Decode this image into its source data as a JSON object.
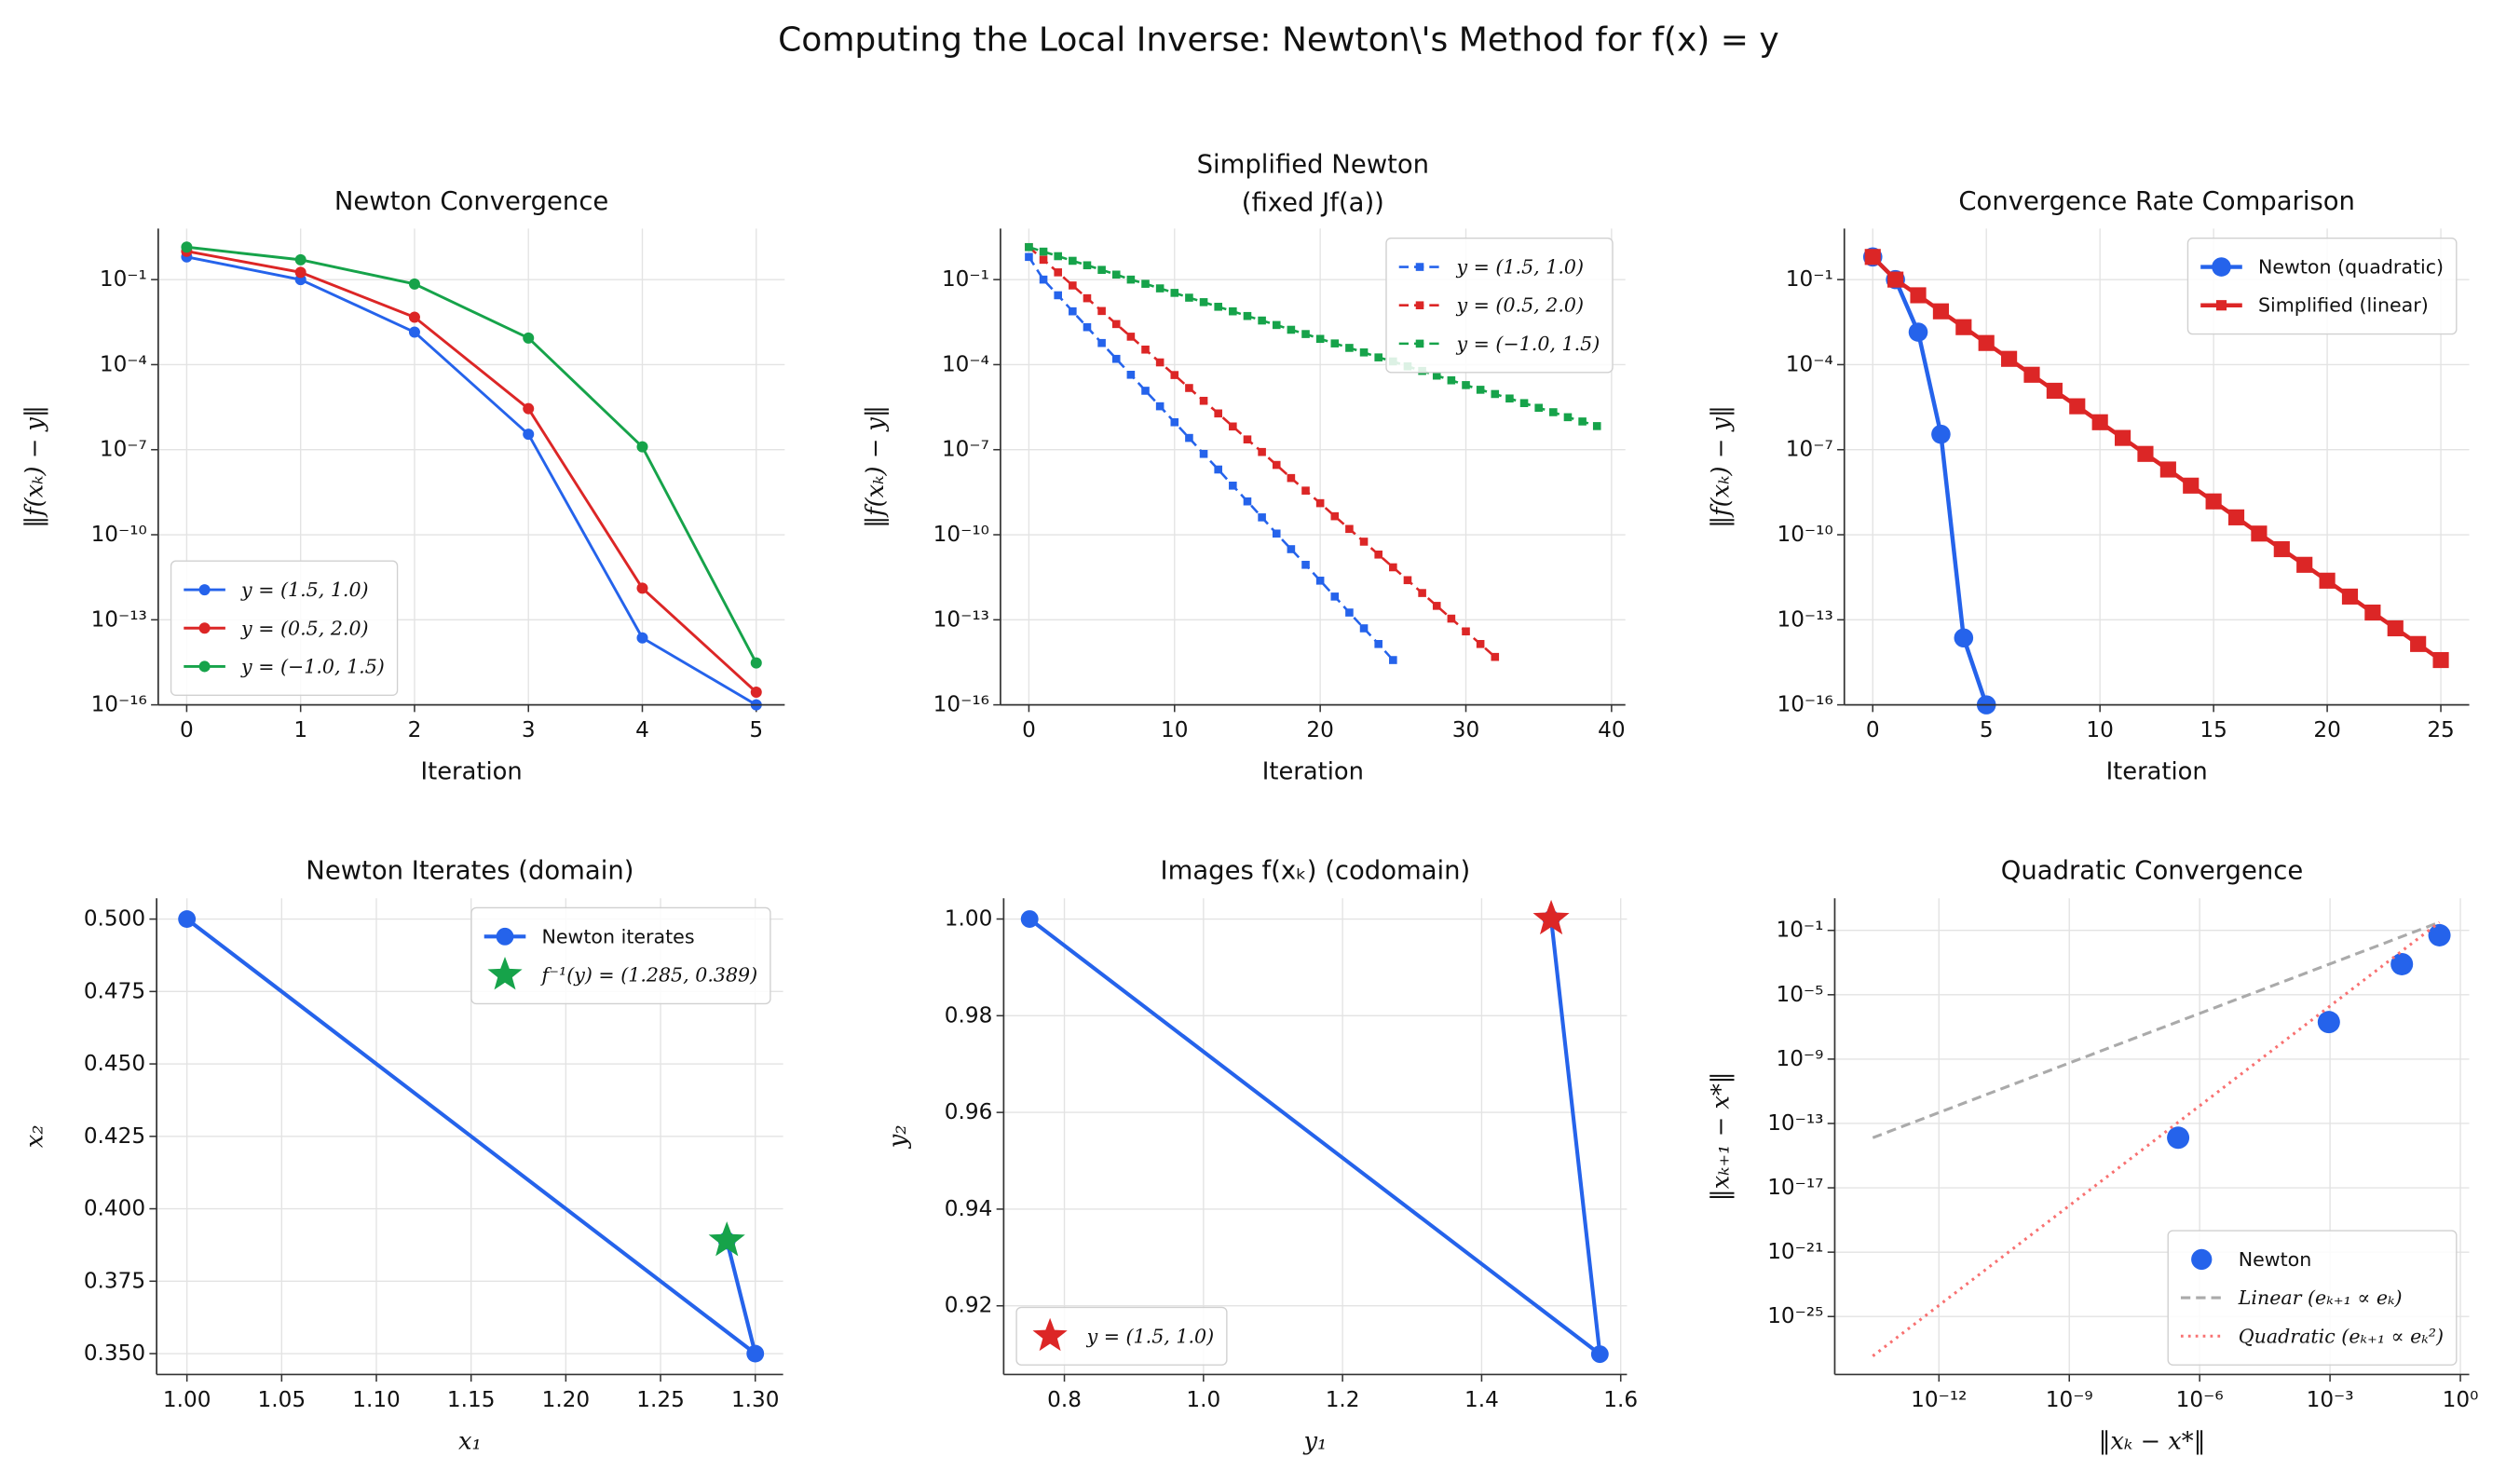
{
  "title": "Computing the Local Inverse: Newton\\'s Method for f(x) = y",
  "chart_data": [
    {
      "type": "line",
      "title": "Newton Convergence",
      "xlabel": "Iteration",
      "ylabel": "‖f(xₖ) − y‖",
      "xlim": [
        -0.25,
        5.25
      ],
      "xticks": [
        0,
        1,
        2,
        3,
        4,
        5
      ],
      "ylim": [
        1e-16,
        6.3
      ],
      "log_y": true,
      "yticks": [
        {
          "value": 1e-16,
          "label": "10⁻¹⁶"
        },
        {
          "value": 1e-13,
          "label": "10⁻¹³"
        },
        {
          "value": 1e-10,
          "label": "10⁻¹⁰"
        },
        {
          "value": 1e-07,
          "label": "10⁻⁷"
        },
        {
          "value": 0.0001,
          "label": "10⁻⁴"
        },
        {
          "value": 0.1,
          "label": "10⁻¹"
        }
      ],
      "grid": true,
      "legend": "lower left",
      "series": [
        {
          "name": "y = (1.5, 1.0)",
          "color": "#2563eb",
          "marker": "circle",
          "markersize": 3.5,
          "linestyle": "solid",
          "linewidth": 1.7,
          "x": [
            0,
            1,
            2,
            3,
            4,
            5
          ],
          "values": [
            0.63,
            0.1,
            0.0014,
            3.5e-07,
            2.3e-14,
            1e-16
          ]
        },
        {
          "name": "y = (0.5, 2.0)",
          "color": "#dc2626",
          "marker": "circle",
          "markersize": 3.5,
          "linestyle": "solid",
          "linewidth": 1.7,
          "x": [
            0,
            1,
            2,
            3,
            4,
            5
          ],
          "values": [
            1.0,
            0.18,
            0.0047,
            2.8e-06,
            1.3e-12,
            2.8e-16
          ]
        },
        {
          "name": "y = (−1.0, 1.5)",
          "color": "#16a34a",
          "marker": "circle",
          "markersize": 3.5,
          "linestyle": "solid",
          "linewidth": 1.7,
          "x": [
            0,
            1,
            2,
            3,
            4,
            5
          ],
          "values": [
            1.4,
            0.5,
            0.07,
            0.00087,
            1.26e-07,
            3e-15
          ]
        }
      ]
    },
    {
      "type": "line",
      "title": "Simplified Newton",
      "subtitle": "(fixed Jf(a))",
      "xlabel": "Iteration",
      "ylabel": "‖f(xₖ) − y‖",
      "xlim": [
        -1.95,
        40.95
      ],
      "xticks": [
        0,
        10,
        20,
        30,
        40
      ],
      "ylim": [
        1e-16,
        6.3
      ],
      "log_y": true,
      "yticks": [
        {
          "value": 1e-16,
          "label": "10⁻¹⁶"
        },
        {
          "value": 1e-13,
          "label": "10⁻¹³"
        },
        {
          "value": 1e-10,
          "label": "10⁻¹⁰"
        },
        {
          "value": 1e-07,
          "label": "10⁻⁷"
        },
        {
          "value": 0.0001,
          "label": "10⁻⁴"
        },
        {
          "value": 0.1,
          "label": "10⁻¹"
        }
      ],
      "grid": true,
      "legend": "upper right",
      "series": [
        {
          "name": "y = (1.5, 1.0)",
          "color": "#2563eb",
          "marker": "square",
          "markersize": 5,
          "linestyle": "dashed",
          "linewidth": 1.5,
          "x": [
            0,
            1,
            2,
            3,
            4,
            5,
            6,
            7,
            8,
            9,
            10,
            11,
            12,
            13,
            14,
            15,
            16,
            17,
            18,
            19,
            20,
            21,
            22,
            23,
            24,
            25
          ],
          "values": [
            0.63,
            0.1,
            0.028,
            0.0076,
            0.0021,
            0.00058,
            0.00016,
            4.4e-05,
            1.2e-05,
            3.4e-06,
            9.3e-07,
            2.6e-07,
            7.1e-08,
            2e-08,
            5.4e-09,
            1.5e-09,
            4.1e-10,
            1.1e-10,
            3.1e-11,
            8.7e-12,
            2.4e-12,
            6.6e-13,
            1.8e-13,
            5e-14,
            1.4e-14,
            3.8e-15
          ]
        },
        {
          "name": "y = (0.5, 2.0)",
          "color": "#dc2626",
          "marker": "square",
          "markersize": 5,
          "linestyle": "dashed",
          "linewidth": 1.5,
          "x": [
            0,
            1,
            2,
            3,
            4,
            5,
            6,
            7,
            8,
            9,
            10,
            11,
            12,
            13,
            14,
            15,
            16,
            17,
            18,
            19,
            20,
            21,
            22,
            23,
            24,
            25,
            26,
            27,
            28,
            29,
            30,
            31,
            32
          ],
          "values": [
            1.4,
            0.5,
            0.18,
            0.062,
            0.022,
            0.0078,
            0.0027,
            0.00097,
            0.00034,
            0.00012,
            4.3e-05,
            1.5e-05,
            5.3e-06,
            1.9e-06,
            6.6e-07,
            2.3e-07,
            8.3e-08,
            2.9e-08,
            1e-08,
            3.6e-09,
            1.3e-09,
            4.5e-10,
            1.6e-10,
            5.7e-11,
            2e-11,
            7.1e-12,
            2.5e-12,
            8.8e-13,
            3.1e-13,
            1.1e-13,
            3.9e-14,
            1.4e-14,
            4.9e-15
          ]
        },
        {
          "name": "y = (−1.0, 1.5)",
          "color": "#16a34a",
          "marker": "square",
          "markersize": 5,
          "linestyle": "dashed",
          "linewidth": 1.5,
          "x": [
            0,
            1,
            2,
            3,
            4,
            5,
            6,
            7,
            8,
            9,
            10,
            11,
            12,
            13,
            14,
            15,
            16,
            17,
            18,
            19,
            20,
            21,
            22,
            23,
            24,
            25,
            26,
            27,
            28,
            29,
            30,
            31,
            32,
            33,
            34,
            35,
            36,
            37,
            38,
            39
          ],
          "values": [
            1.4,
            0.97,
            0.67,
            0.46,
            0.32,
            0.22,
            0.15,
            0.1,
            0.071,
            0.049,
            0.034,
            0.023,
            0.016,
            0.011,
            0.0076,
            0.0052,
            0.0036,
            0.0025,
            0.0017,
            0.0012,
            0.00081,
            0.00056,
            0.00039,
            0.00027,
            0.00018,
            0.00013,
            8.7e-05,
            6e-05,
            4.1e-05,
            2.8e-05,
            1.9e-05,
            1.3e-05,
            9.2e-06,
            6.4e-06,
            4.4e-06,
            3e-06,
            2.1e-06,
            1.4e-06,
            9.9e-07,
            6.8e-07
          ]
        }
      ]
    },
    {
      "type": "line",
      "title": "Convergence Rate Comparison",
      "xlabel": "Iteration",
      "ylabel": "‖f(xₖ) − y‖",
      "xlim": [
        -1.25,
        26.25
      ],
      "xticks": [
        0,
        5,
        10,
        15,
        20,
        25
      ],
      "ylim": [
        1e-16,
        6.3
      ],
      "log_y": true,
      "yticks": [
        {
          "value": 1e-16,
          "label": "10⁻¹⁶"
        },
        {
          "value": 1e-13,
          "label": "10⁻¹³"
        },
        {
          "value": 1e-10,
          "label": "10⁻¹⁰"
        },
        {
          "value": 1e-07,
          "label": "10⁻⁷"
        },
        {
          "value": 0.0001,
          "label": "10⁻⁴"
        },
        {
          "value": 0.1,
          "label": "10⁻¹"
        }
      ],
      "grid": true,
      "legend": "upper right",
      "series": [
        {
          "name": "Newton (quadratic)",
          "color": "#2563eb",
          "marker": "circle",
          "markersize": 6,
          "linestyle": "solid",
          "linewidth": 2.6,
          "x": [
            0,
            1,
            2,
            3,
            4,
            5
          ],
          "values": [
            0.63,
            0.1,
            0.0014,
            3.5e-07,
            2.3e-14,
            1e-16
          ]
        },
        {
          "name": "Simplified (linear)",
          "color": "#dc2626",
          "marker": "square",
          "markersize": 10,
          "linestyle": "solid",
          "linewidth": 2.6,
          "x": [
            0,
            1,
            2,
            3,
            4,
            5,
            6,
            7,
            8,
            9,
            10,
            11,
            12,
            13,
            14,
            15,
            16,
            17,
            18,
            19,
            20,
            21,
            22,
            23,
            24,
            25
          ],
          "values": [
            0.63,
            0.1,
            0.028,
            0.0076,
            0.0021,
            0.00058,
            0.00016,
            4.4e-05,
            1.2e-05,
            3.4e-06,
            9.3e-07,
            2.6e-07,
            7.1e-08,
            2e-08,
            5.4e-09,
            1.5e-09,
            4.1e-10,
            1.1e-10,
            3.1e-11,
            8.7e-12,
            2.4e-12,
            6.6e-13,
            1.8e-13,
            5e-14,
            1.4e-14,
            3.8e-15
          ]
        }
      ]
    },
    {
      "type": "line",
      "title": "Newton Iterates (domain)",
      "xlabel": "x₁",
      "ylabel": "x₂",
      "xlim": [
        0.984,
        1.3147
      ],
      "xticks": [
        {
          "value": 1.0,
          "label": "1.00"
        },
        1.05,
        {
          "value": 1.1,
          "label": "1.10"
        },
        1.15,
        {
          "value": 1.2,
          "label": "1.20"
        },
        1.25,
        {
          "value": 1.3,
          "label": "1.30"
        }
      ],
      "ylim": [
        0.3428,
        0.5072
      ],
      "yticks": [
        {
          "value": 0.35,
          "label": "0.350"
        },
        0.375,
        {
          "value": 0.4,
          "label": "0.400"
        },
        0.425,
        {
          "value": 0.45,
          "label": "0.450"
        },
        0.475,
        {
          "value": 0.5,
          "label": "0.500"
        }
      ],
      "grid": true,
      "legend": "upper right",
      "series": [
        {
          "name": "Newton iterates",
          "color": "#2563eb",
          "marker": "circle",
          "markersize": 5.5,
          "linestyle": "solid",
          "linewidth": 2.4,
          "x": [
            1.0,
            1.3,
            1.285,
            1.285
          ],
          "values": [
            0.5,
            0.35,
            0.389,
            0.389
          ]
        },
        {
          "name": "f⁻¹(y) = (1.285, 0.389)",
          "color": "#16a34a",
          "marker": "star",
          "markersize": 12,
          "linestyle": "none",
          "x": [
            1.285
          ],
          "values": [
            0.389
          ]
        }
      ]
    },
    {
      "type": "line",
      "title": "Images f(xₖ) (codomain)",
      "xlabel": "y₁",
      "ylabel": "y₂",
      "xlim": [
        0.7127,
        1.609
      ],
      "xticks": [
        0.8,
        {
          "value": 1.0,
          "label": "1.0"
        },
        1.2,
        1.4,
        1.6
      ],
      "ylim": [
        0.9058,
        1.0043
      ],
      "yticks": [
        0.92,
        0.94,
        0.96,
        0.98,
        {
          "value": 1.0,
          "label": "1.00"
        }
      ],
      "grid": true,
      "legend": "lower left",
      "series": [
        {
          "name": null,
          "color": "#2563eb",
          "marker": "circle",
          "markersize": 5.5,
          "linestyle": "solid",
          "linewidth": 2.4,
          "x": [
            0.75,
            1.57,
            1.5
          ],
          "values": [
            1.0,
            0.91,
            1.0
          ]
        },
        {
          "name": "y = (1.5, 1.0)",
          "color": "#dc2626",
          "marker": "star",
          "markersize": 12,
          "linestyle": "none",
          "x": [
            1.5
          ],
          "values": [
            1.0
          ]
        }
      ]
    },
    {
      "type": "scatter",
      "title": "Quadratic Convergence",
      "xlabel": "‖xₖ − x*‖",
      "ylabel": "‖xₖ₊₁ − x*‖",
      "xlim": [
        4e-15,
        1.6
      ],
      "log_x": true,
      "xticks": [
        {
          "value": 1e-12,
          "label": "10⁻¹²"
        },
        {
          "value": 1e-09,
          "label": "10⁻⁹"
        },
        {
          "value": 1e-06,
          "label": "10⁻⁶"
        },
        {
          "value": 0.001,
          "label": "10⁻³"
        },
        {
          "value": 1,
          "label": "10⁰"
        }
      ],
      "ylim": [
        2.5e-29,
        10
      ],
      "log_y": true,
      "yticks": [
        {
          "value": 1e-25,
          "label": "10⁻²⁵"
        },
        {
          "value": 1e-21,
          "label": "10⁻²¹"
        },
        {
          "value": 1e-17,
          "label": "10⁻¹⁷"
        },
        {
          "value": 1e-13,
          "label": "10⁻¹³"
        },
        {
          "value": 1e-09,
          "label": "10⁻⁹"
        },
        {
          "value": 1e-05,
          "label": "10⁻⁵"
        },
        {
          "value": 0.1,
          "label": "10⁻¹"
        }
      ],
      "grid": true,
      "legend": "lower right",
      "series": [
        {
          "name": "Newton",
          "color": "#2563eb",
          "marker": "circle",
          "markersize": 7,
          "linestyle": "none",
          "x": [
            0.33,
            0.045,
            0.00094,
            3.2e-07
          ],
          "values": [
            0.05,
            0.0008,
            2e-07,
            1.3e-14
          ]
        },
        {
          "name": "Linear (eₖ₊₁ ∝ eₖ)",
          "color": "#aaaaaa",
          "linestyle": "dashed",
          "linewidth": 1.8,
          "x": [
            3e-14,
            0.33
          ],
          "values": [
            1.3e-14,
            0.32
          ]
        },
        {
          "name": "Quadratic (eₖ₊₁ ∝ eₖ²)",
          "color": "#f87171",
          "linestyle": "dotted",
          "linewidth": 1.8,
          "x": [
            3e-14,
            0.33
          ],
          "values": [
            3.5e-28,
            0.32
          ]
        }
      ]
    }
  ]
}
